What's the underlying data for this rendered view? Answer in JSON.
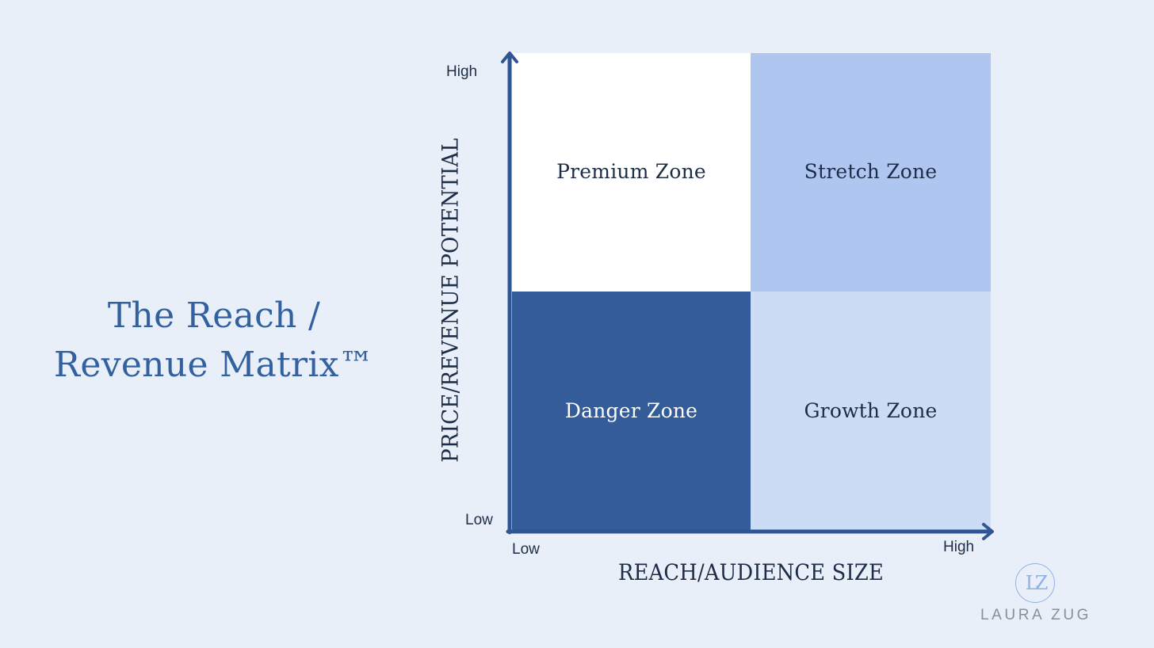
{
  "theme": {
    "background": "#e8eff9",
    "title_color": "#33609e",
    "text_dark": "#1e2d47",
    "axis_color": "#2f5694",
    "logo_color": "#8fb2e6",
    "logo_text_color": "#8a8f99"
  },
  "title": {
    "line1": "The Reach /",
    "line2": "Revenue Matrix™"
  },
  "matrix": {
    "x_axis": {
      "label": "REACH/AUDIENCE SIZE",
      "low": "Low",
      "high": "High"
    },
    "y_axis": {
      "label": "PRICE/REVENUE POTENTIAL",
      "low": "Low",
      "high": "High"
    },
    "quadrants": {
      "premium": {
        "label": "Premium Zone",
        "fill": "#ffffff",
        "text_color": "#1e2d47"
      },
      "stretch": {
        "label": "Stretch Zone",
        "fill": "#aec6f0",
        "text_color": "#1e2d47"
      },
      "danger": {
        "label": "Danger Zone",
        "fill": "#335c99",
        "text_color": "#ffffff"
      },
      "growth": {
        "label": "Growth Zone",
        "fill": "#cbdcf4",
        "text_color": "#1e2d47"
      }
    }
  },
  "logo": {
    "mark": "LZ",
    "name": "LAURA ZUG"
  }
}
